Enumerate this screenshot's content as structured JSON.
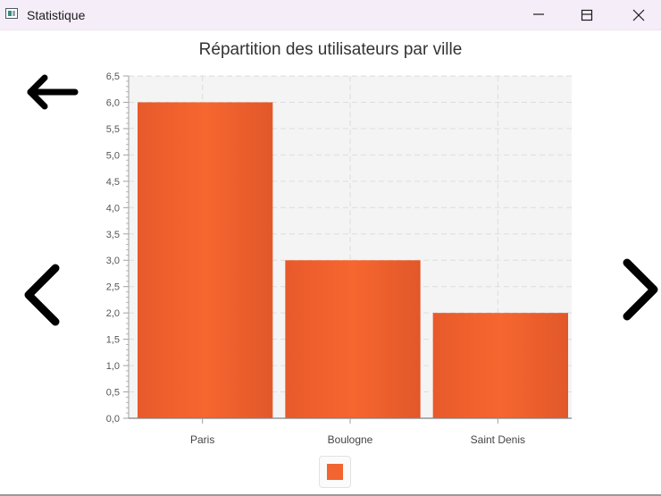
{
  "window": {
    "title": "Statistique",
    "minimize_icon": "minimize-icon",
    "maximize_icon": "maximize-icon",
    "close_icon": "close-icon"
  },
  "navigation": {
    "back_icon": "arrow-left-icon",
    "prev_icon": "chevron-left-icon",
    "next_icon": "chevron-right-icon"
  },
  "chart_data": {
    "type": "bar",
    "title": "Répartition des utilisateurs par ville",
    "categories": [
      "Paris",
      "Boulogne",
      "Saint Denis"
    ],
    "series": [
      {
        "values": [
          6,
          3,
          2
        ],
        "color": "#f26430"
      }
    ],
    "ylim": [
      0,
      6.5
    ],
    "y_ticks": [
      "0,0",
      "0,5",
      "1,0",
      "1,5",
      "2,0",
      "2,5",
      "3,0",
      "3,5",
      "4,0",
      "4,5",
      "5,0",
      "5,5",
      "6,0",
      "6,5"
    ],
    "grid": true,
    "legend": "bottom"
  }
}
